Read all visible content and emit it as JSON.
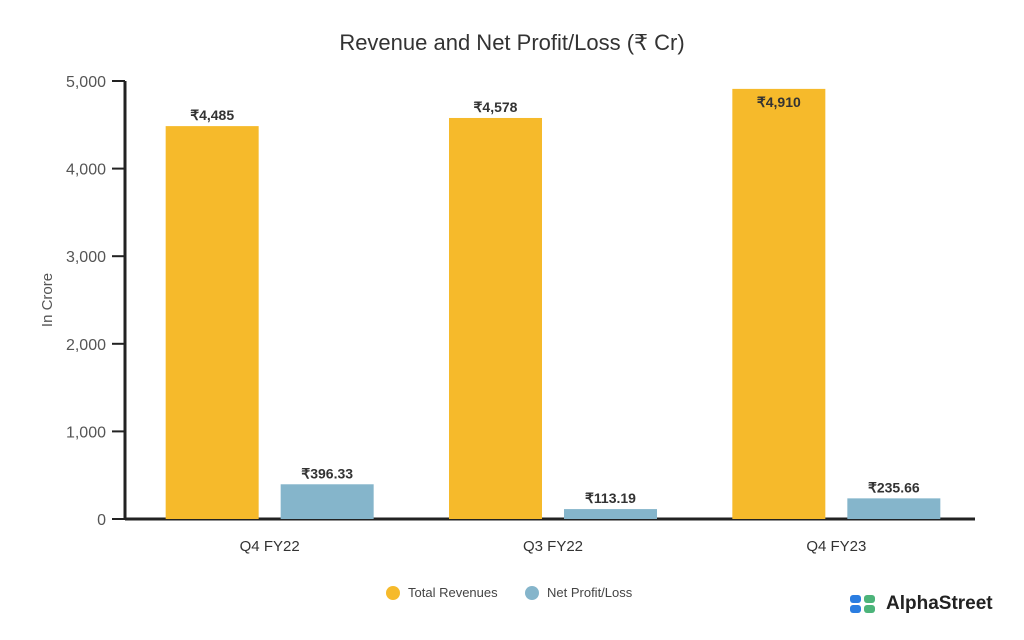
{
  "chart_data": {
    "type": "bar",
    "title": "Revenue and Net Profit/Loss (₹ Cr)",
    "ylabel": "In Crore",
    "xlabel": "",
    "ylim": [
      0,
      5000
    ],
    "yticks": [
      0,
      1000,
      2000,
      3000,
      4000,
      5000
    ],
    "ytick_labels": [
      "0",
      "1,000",
      "2,000",
      "3,000",
      "4,000",
      "5,000"
    ],
    "categories": [
      "Q4 FY22",
      "Q3 FY22",
      "Q4 FY23"
    ],
    "series": [
      {
        "name": "Total Revenues",
        "color": "#F6BA2B",
        "values": [
          4485,
          4578,
          4910
        ],
        "labels": [
          "₹4,485",
          "₹4,578",
          "₹4,910"
        ]
      },
      {
        "name": "Net Profit/Loss",
        "color": "#85B5CB",
        "values": [
          396.33,
          113.19,
          235.66
        ],
        "labels": [
          "₹396.33",
          "₹113.19",
          "₹235.66"
        ]
      }
    ],
    "legend": "bottom-center",
    "grid": false
  },
  "brand": {
    "name": "AlphaStreet"
  }
}
